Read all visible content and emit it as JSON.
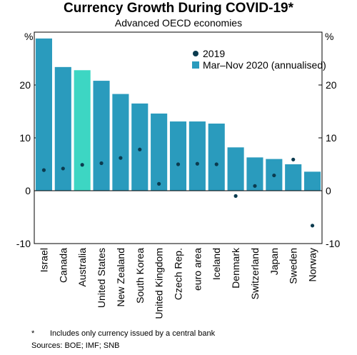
{
  "title": "Currency Growth During COVID-19*",
  "subtitle": "Advanced OECD economies",
  "unit_left": "%",
  "unit_right": "%",
  "footnote_marker": "*",
  "footnote": "Includes only currency issued by a central bank",
  "sources": "Sources: BOE; IMF; SNB",
  "colors": {
    "bar": "#2a9bbd",
    "highlight_bar": "#3dd6c3",
    "dot": "#0b3b4f"
  },
  "chart_data": {
    "type": "bar",
    "title": "Currency Growth During COVID-19*",
    "subtitle": "Advanced OECD economies",
    "categories": [
      "Israel",
      "Canada",
      "Australia",
      "United States",
      "New Zealand",
      "South Korea",
      "United Kingdom",
      "Czech Rep.",
      "euro area",
      "Iceland",
      "Denmark",
      "Switzerland",
      "Japan",
      "Sweden",
      "Norway"
    ],
    "highlight_category": "Australia",
    "series": [
      {
        "name": "Mar–Nov 2020 (annualised)",
        "kind": "bar",
        "values": [
          28.8,
          23.4,
          22.8,
          20.8,
          18.3,
          16.5,
          14.6,
          13.1,
          13.1,
          12.7,
          8.2,
          6.3,
          6.0,
          5.0,
          3.6
        ]
      },
      {
        "name": "2019",
        "kind": "dot",
        "values": [
          3.9,
          4.2,
          4.9,
          5.2,
          6.2,
          7.8,
          1.3,
          5.0,
          5.1,
          5.0,
          -1.0,
          0.9,
          2.9,
          5.9,
          -6.6
        ]
      }
    ],
    "ylim": [
      -10,
      30
    ],
    "yticks": [
      -10,
      0,
      10,
      20
    ],
    "legend_position": "top-right",
    "grid": false
  }
}
